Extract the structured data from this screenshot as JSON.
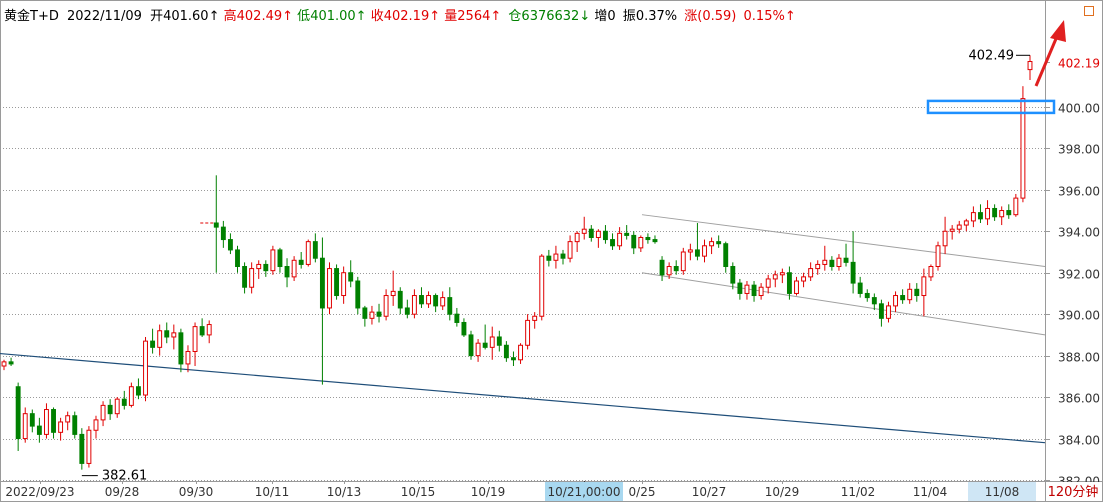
{
  "header": {
    "symbol": "黄金T+D",
    "date": "2022/11/09",
    "open_label": "开",
    "open_value": "401.60↑",
    "high_label": "高",
    "high_value": "402.49↑",
    "low_label": "低",
    "low_value": "401.00↑",
    "close_label": "收",
    "close_value": "402.19↑",
    "volume_label": "量",
    "volume_value": "2564↑",
    "position_label": "仓",
    "position_value": "6376632↓",
    "increase_label": "增",
    "increase_value": "0",
    "amplitude_label": "振",
    "amplitude_value": "0.37%",
    "change_label": "涨",
    "change_value": "(0.59)",
    "change_pct": "0.15%↑"
  },
  "period_label": "120分钟",
  "colors": {
    "up": "#e00000",
    "down": "#008000",
    "trend_line": "#1f4e79",
    "channel_line": "#a0a0a0",
    "highlight_box": "#1e90ff",
    "arrow": "#e02020",
    "grid": "#9a9a9a"
  },
  "chart_data": {
    "type": "candlestick",
    "ylim": [
      382,
      404
    ],
    "yticks": [
      "382.00",
      "384.00",
      "386.00",
      "388.00",
      "390.00",
      "392.00",
      "394.00",
      "396.00",
      "398.00",
      "400.00",
      "402.19"
    ],
    "last_price": "402.19",
    "xlabels": [
      "2022/09/23",
      "09/28",
      "09/30",
      "10/11",
      "10/13",
      "10/15",
      "10/19",
      "10/21,00:00",
      "0/25",
      "10/27",
      "10/29",
      "11/02",
      "11/04",
      "11/08"
    ],
    "crosshair_time": "10/21,00:00",
    "annotations": {
      "high_label": "402.49",
      "low_label": "382.61"
    },
    "candles": [
      [
        387.5,
        387.8,
        387.3,
        387.7
      ],
      [
        387.7,
        387.9,
        387.5,
        387.6
      ],
      [
        386.5,
        386.7,
        383.4,
        384.0
      ],
      [
        384.0,
        385.5,
        383.8,
        385.2
      ],
      [
        385.2,
        385.4,
        384.3,
        384.6
      ],
      [
        384.6,
        385.0,
        383.8,
        384.2
      ],
      [
        384.2,
        385.7,
        384.0,
        385.4
      ],
      [
        385.4,
        385.5,
        384.0,
        384.3
      ],
      [
        384.3,
        385.0,
        383.9,
        384.8
      ],
      [
        384.8,
        385.3,
        384.4,
        385.1
      ],
      [
        385.1,
        385.3,
        384.0,
        384.2
      ],
      [
        384.2,
        384.5,
        382.5,
        382.8
      ],
      [
        382.8,
        384.6,
        382.6,
        384.4
      ],
      [
        384.4,
        385.1,
        384.0,
        384.9
      ],
      [
        384.9,
        385.8,
        384.6,
        385.6
      ],
      [
        385.6,
        385.9,
        384.9,
        385.2
      ],
      [
        385.2,
        386.0,
        385.0,
        385.9
      ],
      [
        385.9,
        386.3,
        385.4,
        385.6
      ],
      [
        385.6,
        386.7,
        385.5,
        386.5
      ],
      [
        386.5,
        386.9,
        385.9,
        386.1
      ],
      [
        386.1,
        388.9,
        385.8,
        388.7
      ],
      [
        388.7,
        389.3,
        388.1,
        388.4
      ],
      [
        388.4,
        389.5,
        388.0,
        389.2
      ],
      [
        389.2,
        389.6,
        388.6,
        388.9
      ],
      [
        388.9,
        389.5,
        388.3,
        389.1
      ],
      [
        389.1,
        389.3,
        387.2,
        387.6
      ],
      [
        387.6,
        388.5,
        387.2,
        388.2
      ],
      [
        388.2,
        389.6,
        387.5,
        389.4
      ],
      [
        389.4,
        389.8,
        388.9,
        389.0
      ],
      [
        389.0,
        389.7,
        388.6,
        389.5
      ],
      [
        394.4,
        396.7,
        392.0,
        394.2
      ],
      [
        394.2,
        394.5,
        393.2,
        393.6
      ],
      [
        393.6,
        393.9,
        392.9,
        393.1
      ],
      [
        393.1,
        393.3,
        392.0,
        392.3
      ],
      [
        392.3,
        392.5,
        391.0,
        391.3
      ],
      [
        391.3,
        392.5,
        391.0,
        392.2
      ],
      [
        392.2,
        392.6,
        391.7,
        392.4
      ],
      [
        392.4,
        392.6,
        391.8,
        392.1
      ],
      [
        392.1,
        393.3,
        391.9,
        393.1
      ],
      [
        393.1,
        393.2,
        392.0,
        392.3
      ],
      [
        392.3,
        392.7,
        391.3,
        391.8
      ],
      [
        391.8,
        392.8,
        391.6,
        392.6
      ],
      [
        392.6,
        393.0,
        392.2,
        392.4
      ],
      [
        392.4,
        393.6,
        392.3,
        393.5
      ],
      [
        393.5,
        393.9,
        392.5,
        392.7
      ],
      [
        392.7,
        393.7,
        386.6,
        390.3
      ],
      [
        390.3,
        392.5,
        390.0,
        392.2
      ],
      [
        392.2,
        392.4,
        390.7,
        390.9
      ],
      [
        390.9,
        392.3,
        390.5,
        392.0
      ],
      [
        392.0,
        392.6,
        391.3,
        391.6
      ],
      [
        391.6,
        391.8,
        390.0,
        390.3
      ],
      [
        390.3,
        390.4,
        389.4,
        389.8
      ],
      [
        389.8,
        390.4,
        389.5,
        390.1
      ],
      [
        390.1,
        390.5,
        389.6,
        389.9
      ],
      [
        389.9,
        391.2,
        389.7,
        390.9
      ],
      [
        390.9,
        392.1,
        390.4,
        391.1
      ],
      [
        391.1,
        391.3,
        390.0,
        390.3
      ],
      [
        390.3,
        390.7,
        389.8,
        390.0
      ],
      [
        390.0,
        391.2,
        389.8,
        390.9
      ],
      [
        390.9,
        391.3,
        390.3,
        390.5
      ],
      [
        390.5,
        391.1,
        390.3,
        390.9
      ],
      [
        390.9,
        391.0,
        390.1,
        390.4
      ],
      [
        390.4,
        391.1,
        390.2,
        390.8
      ],
      [
        390.8,
        391.3,
        389.7,
        390.0
      ],
      [
        390.0,
        390.3,
        389.4,
        389.6
      ],
      [
        389.6,
        389.8,
        388.9,
        389.0
      ],
      [
        389.0,
        389.2,
        387.8,
        388.0
      ],
      [
        388.0,
        388.8,
        387.7,
        388.6
      ],
      [
        388.6,
        389.5,
        388.3,
        388.4
      ],
      [
        388.4,
        389.4,
        387.8,
        388.9
      ],
      [
        388.9,
        389.2,
        388.2,
        388.5
      ],
      [
        388.5,
        388.7,
        387.7,
        387.9
      ],
      [
        387.9,
        388.2,
        387.5,
        387.8
      ],
      [
        387.8,
        388.6,
        387.6,
        388.5
      ],
      [
        388.5,
        390.0,
        388.3,
        389.7
      ],
      [
        389.7,
        390.1,
        389.3,
        389.9
      ],
      [
        389.9,
        392.9,
        389.7,
        392.8
      ],
      [
        392.8,
        393.1,
        392.3,
        392.6
      ],
      [
        392.6,
        393.3,
        392.2,
        392.9
      ],
      [
        392.9,
        393.1,
        392.4,
        392.7
      ],
      [
        392.7,
        393.8,
        392.5,
        393.5
      ],
      [
        393.5,
        394.0,
        393.0,
        393.9
      ],
      [
        393.9,
        394.7,
        393.6,
        394.1
      ],
      [
        394.1,
        394.3,
        393.5,
        393.7
      ],
      [
        393.7,
        394.1,
        393.2,
        394.0
      ],
      [
        394.0,
        394.3,
        393.4,
        393.6
      ],
      [
        393.6,
        393.9,
        393.1,
        393.3
      ],
      [
        393.3,
        394.2,
        393.1,
        393.9
      ],
      [
        393.9,
        394.3,
        393.6,
        393.8
      ],
      [
        393.8,
        394.0,
        392.9,
        393.2
      ],
      [
        393.2,
        393.8,
        393.0,
        393.7
      ],
      [
        393.7,
        393.9,
        393.4,
        393.6
      ],
      [
        393.6,
        393.8,
        393.4,
        393.5
      ],
      [
        392.6,
        392.8,
        391.6,
        391.9
      ],
      [
        391.9,
        392.5,
        391.7,
        392.3
      ],
      [
        392.3,
        392.6,
        391.9,
        392.1
      ],
      [
        392.1,
        393.2,
        391.9,
        393.0
      ],
      [
        393.0,
        393.4,
        392.6,
        393.1
      ],
      [
        393.1,
        394.4,
        392.6,
        392.8
      ],
      [
        392.8,
        393.6,
        392.5,
        393.3
      ],
      [
        393.3,
        393.7,
        392.9,
        393.5
      ],
      [
        393.5,
        393.8,
        393.2,
        393.4
      ],
      [
        393.4,
        393.5,
        392.0,
        392.3
      ],
      [
        392.3,
        392.5,
        391.2,
        391.5
      ],
      [
        391.5,
        391.7,
        390.7,
        391.0
      ],
      [
        391.0,
        391.6,
        390.7,
        391.4
      ],
      [
        391.4,
        391.6,
        390.6,
        390.9
      ],
      [
        390.9,
        391.5,
        390.7,
        391.3
      ],
      [
        391.3,
        391.9,
        391.0,
        391.7
      ],
      [
        391.7,
        392.1,
        391.3,
        391.9
      ],
      [
        391.9,
        392.2,
        391.5,
        392.0
      ],
      [
        392.0,
        392.3,
        390.7,
        391.0
      ],
      [
        391.0,
        391.8,
        390.9,
        391.6
      ],
      [
        391.6,
        392.0,
        391.3,
        391.8
      ],
      [
        391.8,
        392.5,
        391.6,
        392.2
      ],
      [
        392.2,
        392.6,
        391.9,
        392.4
      ],
      [
        392.4,
        393.3,
        392.1,
        392.6
      ],
      [
        392.6,
        392.8,
        392.1,
        392.3
      ],
      [
        392.3,
        392.9,
        392.1,
        392.7
      ],
      [
        392.7,
        393.4,
        392.3,
        392.5
      ],
      [
        392.5,
        394.0,
        391.0,
        391.5
      ],
      [
        391.5,
        391.8,
        390.8,
        391.0
      ],
      [
        391.0,
        391.2,
        390.6,
        390.8
      ],
      [
        390.8,
        391.0,
        390.2,
        390.5
      ],
      [
        390.5,
        390.7,
        389.4,
        389.8
      ],
      [
        389.8,
        390.6,
        389.6,
        390.4
      ],
      [
        390.4,
        391.1,
        390.1,
        390.9
      ],
      [
        390.9,
        391.2,
        390.5,
        390.7
      ],
      [
        390.7,
        391.5,
        390.5,
        391.2
      ],
      [
        391.2,
        391.5,
        390.6,
        390.9
      ],
      [
        390.9,
        392.2,
        389.9,
        391.8
      ],
      [
        391.8,
        392.4,
        391.6,
        392.3
      ],
      [
        392.3,
        393.5,
        392.1,
        393.3
      ],
      [
        393.3,
        394.7,
        392.9,
        394.0
      ],
      [
        394.0,
        394.3,
        393.6,
        394.1
      ],
      [
        394.1,
        394.5,
        393.9,
        394.3
      ],
      [
        394.3,
        394.6,
        394.0,
        394.5
      ],
      [
        394.5,
        395.2,
        394.2,
        394.9
      ],
      [
        394.9,
        395.3,
        394.4,
        394.6
      ],
      [
        394.6,
        395.5,
        394.3,
        395.1
      ],
      [
        395.1,
        395.3,
        394.5,
        394.7
      ],
      [
        394.7,
        395.2,
        394.3,
        395.0
      ],
      [
        395.0,
        395.3,
        394.6,
        394.8
      ],
      [
        394.8,
        395.8,
        394.7,
        395.6
      ],
      [
        395.6,
        401.0,
        395.4,
        400.4
      ],
      [
        401.8,
        402.49,
        401.3,
        402.19
      ]
    ],
    "trend_line": {
      "start_x": "2022/09/23",
      "start_y": 388.1,
      "end_x": "11/08",
      "end_y": 383.8
    },
    "channel_upper": {
      "start_x": "0/25",
      "start_y": 394.8,
      "end_x": "11/08",
      "end_y": 392.3
    },
    "channel_lower": {
      "start_x": "0/25",
      "start_y": 392.0,
      "end_x": "11/08",
      "end_y": 389.0
    }
  }
}
